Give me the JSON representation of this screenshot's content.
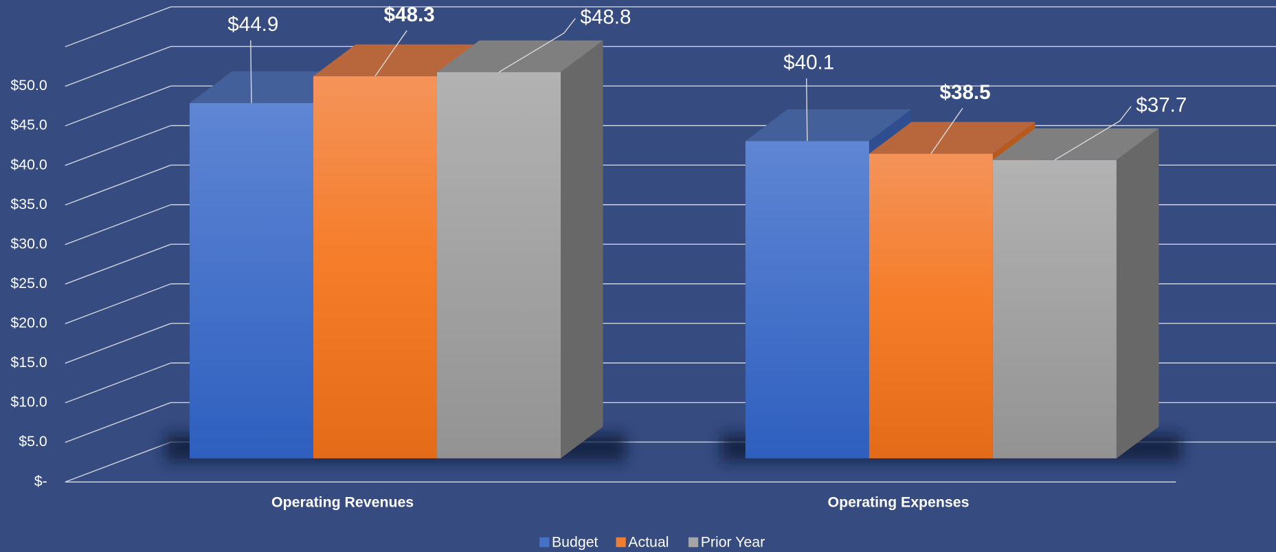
{
  "chart_data": {
    "type": "bar3d",
    "categories": [
      "Operating Revenues",
      "Operating Expenses"
    ],
    "series": [
      {
        "name": "Budget",
        "color": "#4472c4",
        "values": [
          44.9,
          40.1
        ],
        "value_labels": [
          "$44.9",
          "$40.1"
        ]
      },
      {
        "name": "Actual",
        "color": "#ed7d31",
        "values": [
          48.3,
          38.5
        ],
        "value_labels": [
          "$48.3",
          "$38.5"
        ]
      },
      {
        "name": "Prior Year",
        "color": "#a5a5a5",
        "values": [
          48.8,
          37.7
        ],
        "value_labels": [
          "$48.8",
          "$37.7"
        ]
      }
    ],
    "ylim": [
      0,
      55
    ],
    "yticks": [
      {
        "value": 0,
        "label": "$-"
      },
      {
        "value": 5,
        "label": "$5.0"
      },
      {
        "value": 10,
        "label": "$10.0"
      },
      {
        "value": 15,
        "label": "$15.0"
      },
      {
        "value": 20,
        "label": "$20.0"
      },
      {
        "value": 25,
        "label": "$25.0"
      },
      {
        "value": 30,
        "label": "$30.0"
      },
      {
        "value": 35,
        "label": "$35.0"
      },
      {
        "value": 40,
        "label": "$40.0"
      },
      {
        "value": 45,
        "label": "$45.0"
      },
      {
        "value": 50,
        "label": "$50.0"
      }
    ],
    "grid": true,
    "legend": "bottom"
  }
}
